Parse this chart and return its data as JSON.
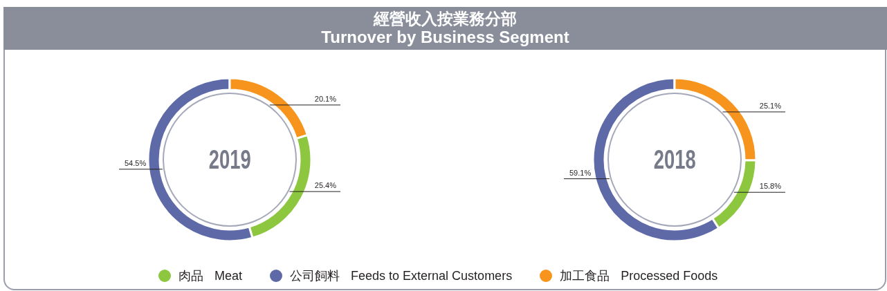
{
  "chart_data": [
    {
      "type": "other",
      "title": "經營收入按業務分部",
      "subtitle": "Turnover by Business Segment"
    },
    {
      "type": "donut",
      "title": "2019",
      "categories": [
        "肉品 Meat",
        "公司飼料 Feeds to External Customers",
        "加工食品 Processed Foods"
      ],
      "values": [
        25.4,
        54.5,
        20.1
      ],
      "colors": [
        "#8dc63f",
        "#5e6aa8",
        "#f7941d"
      ],
      "value_labels": [
        "25.4%",
        "54.5%",
        "20.1%"
      ],
      "legend": "bottom"
    },
    {
      "type": "donut",
      "title": "2018",
      "categories": [
        null,
        null,
        null
      ],
      "values": [
        15.8,
        59.1,
        25.1
      ],
      "colors": [
        "#8dc63f",
        "#5e6aa8",
        "#f7941d"
      ],
      "value_labels": [
        "15.8%",
        "59.1%",
        "25.1%"
      ]
    }
  ]
}
